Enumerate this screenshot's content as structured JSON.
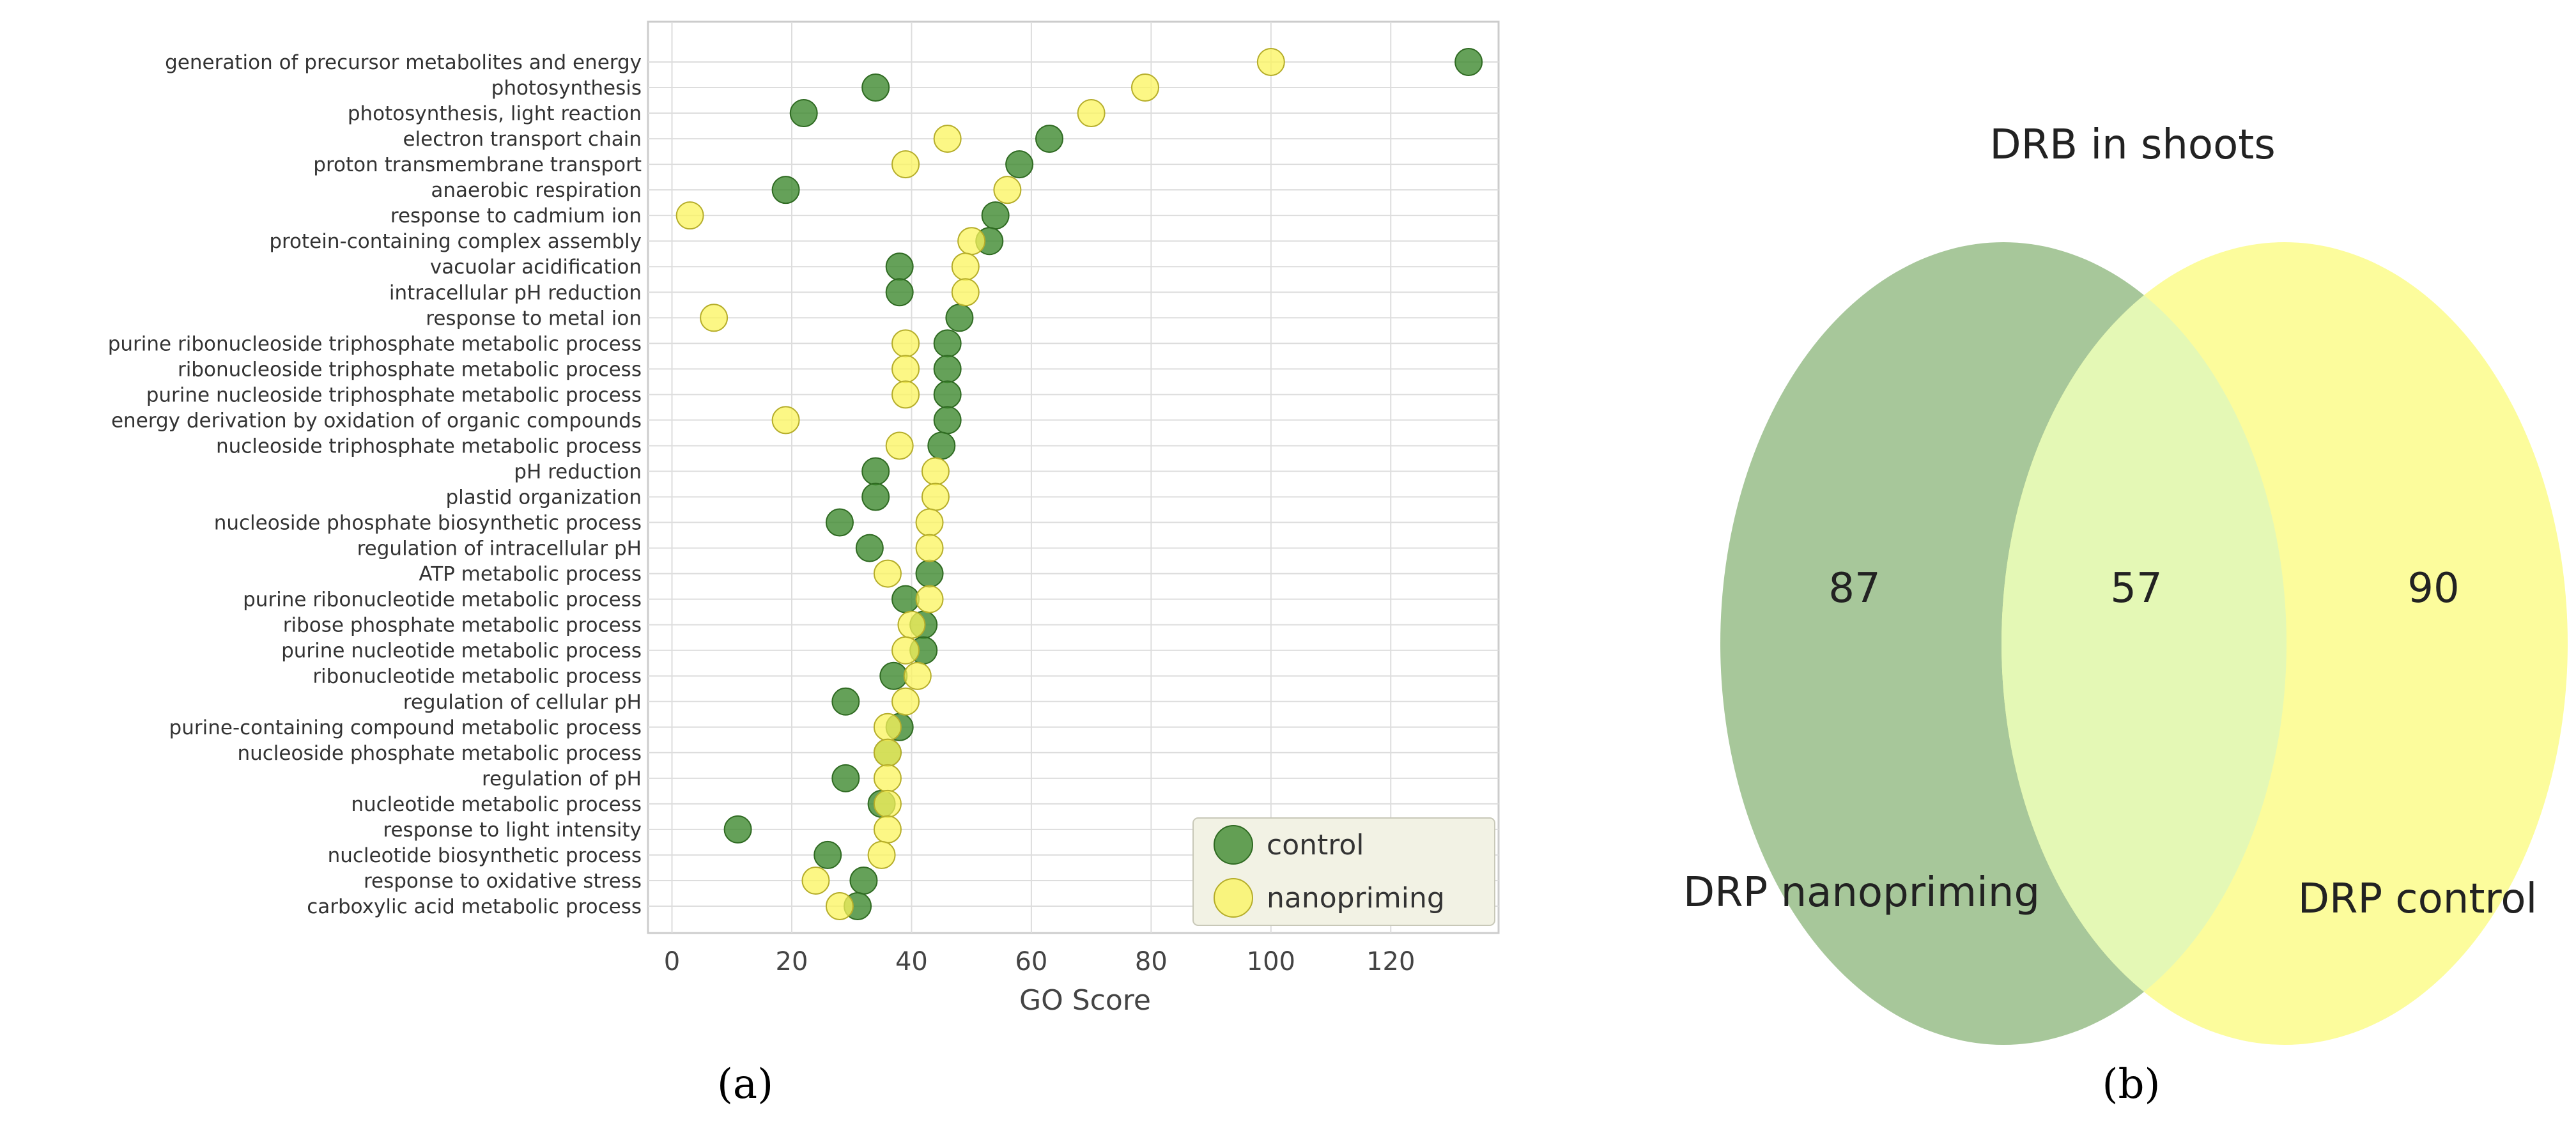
{
  "chart_data": [
    {
      "type": "scatter",
      "panel_label": "(a)",
      "xlabel": "GO Score",
      "xlim": [
        -4,
        138
      ],
      "xticks": [
        0,
        20,
        40,
        60,
        80,
        100,
        120
      ],
      "grid": true,
      "legend_position": "bottom-right",
      "categories": [
        "generation of precursor metabolites and energy",
        "photosynthesis",
        "photosynthesis, light reaction",
        "electron transport chain",
        "proton transmembrane transport",
        "anaerobic respiration",
        "response to cadmium ion",
        "protein-containing complex assembly",
        "vacuolar acidification",
        "intracellular pH reduction",
        "response to metal ion",
        "purine ribonucleoside triphosphate metabolic process",
        "ribonucleoside triphosphate metabolic process",
        "purine nucleoside triphosphate metabolic process",
        "energy derivation by oxidation of organic compounds",
        "nucleoside triphosphate metabolic process",
        "pH reduction",
        "plastid organization",
        "nucleoside phosphate biosynthetic process",
        "regulation of intracellular pH",
        "ATP metabolic process",
        "purine ribonucleotide metabolic process",
        "ribose phosphate metabolic process",
        "purine nucleotide metabolic process",
        "ribonucleotide metabolic process",
        "regulation of cellular pH",
        "purine-containing compound metabolic process",
        "nucleoside phosphate metabolic process",
        "regulation of pH",
        "nucleotide metabolic process",
        "response to light intensity",
        "nucleotide biosynthetic process",
        "response to oxidative stress",
        "carboxylic acid metabolic process"
      ],
      "series": [
        {
          "name": "control",
          "color": "#3f8a2f",
          "values": [
            133,
            34,
            22,
            63,
            58,
            19,
            54,
            53,
            38,
            38,
            48,
            46,
            46,
            46,
            46,
            45,
            34,
            34,
            28,
            33,
            43,
            39,
            42,
            42,
            37,
            29,
            38,
            36,
            29,
            35,
            11,
            26,
            32,
            31
          ]
        },
        {
          "name": "nanopriming",
          "color": "#fbf45c",
          "values": [
            100,
            79,
            70,
            46,
            39,
            56,
            3,
            50,
            49,
            49,
            7,
            39,
            39,
            39,
            19,
            38,
            44,
            44,
            43,
            43,
            36,
            43,
            40,
            39,
            41,
            39,
            36,
            36,
            36,
            36,
            36,
            35,
            24,
            28
          ]
        }
      ]
    },
    {
      "type": "venn",
      "panel_label": "(b)",
      "title": "DRB in shoots",
      "sets": [
        {
          "name": "DRP nanopriming",
          "only_count": "87",
          "color": "#a7c79a"
        },
        {
          "name": "DRP control",
          "only_count": "90",
          "color": "#fcfc9c"
        }
      ],
      "intersection_count": "57",
      "intersection_color": "#e4f8b5"
    }
  ]
}
